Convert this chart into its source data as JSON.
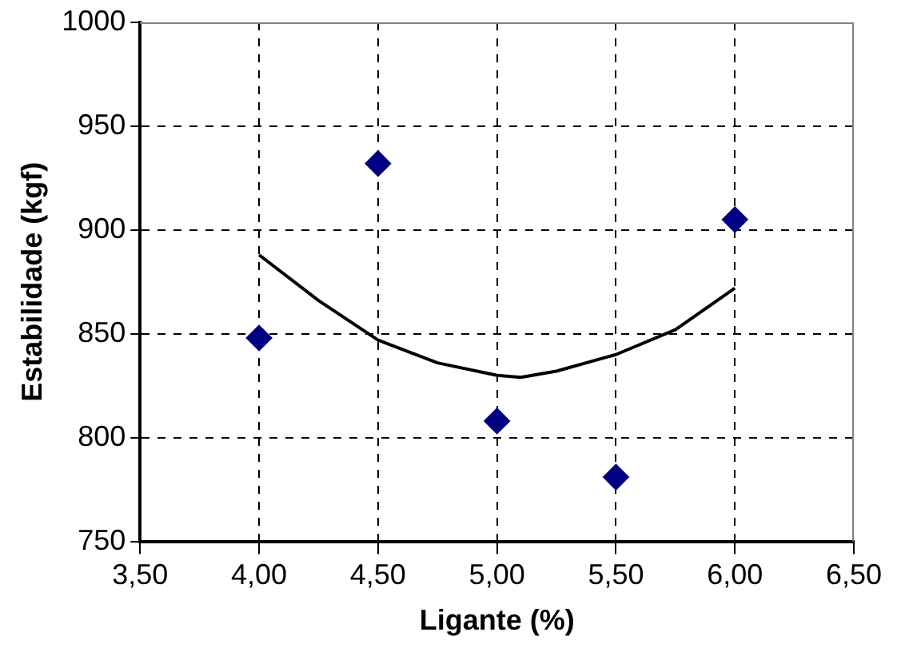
{
  "chart_data": {
    "type": "scatter",
    "xlabel": "Ligante (%)",
    "ylabel": "Estabilidade (kgf)",
    "xlim": [
      3.5,
      6.5
    ],
    "xticks": [
      {
        "value": 3.5,
        "label": "3,50"
      },
      {
        "value": 4,
        "label": "4,00"
      },
      {
        "value": 4.5,
        "label": "4,50"
      },
      {
        "value": 5,
        "label": "5,00"
      },
      {
        "value": 5.5,
        "label": "5,50"
      },
      {
        "value": 6,
        "label": "6,00"
      },
      {
        "value": 6.5,
        "label": "6,50"
      }
    ],
    "ylim": [
      750,
      1000
    ],
    "yticks": [
      750,
      800,
      850,
      900,
      950,
      1000
    ],
    "grid": true,
    "legend": false,
    "series": [
      {
        "color": "#000080",
        "marker": "diamond",
        "x": [
          4,
          4.5,
          5,
          5.5,
          6
        ],
        "values": [
          848,
          932,
          808,
          781,
          905
        ]
      },
      {
        "type": "line",
        "color": "#000000",
        "marker": "none",
        "line_style": "solid",
        "x": [
          4,
          4.25,
          4.5,
          4.75,
          5,
          5.1,
          5.25,
          5.5,
          5.75,
          6
        ],
        "values": [
          888,
          866,
          847,
          836,
          830,
          829,
          832,
          840,
          852,
          872
        ]
      }
    ]
  }
}
